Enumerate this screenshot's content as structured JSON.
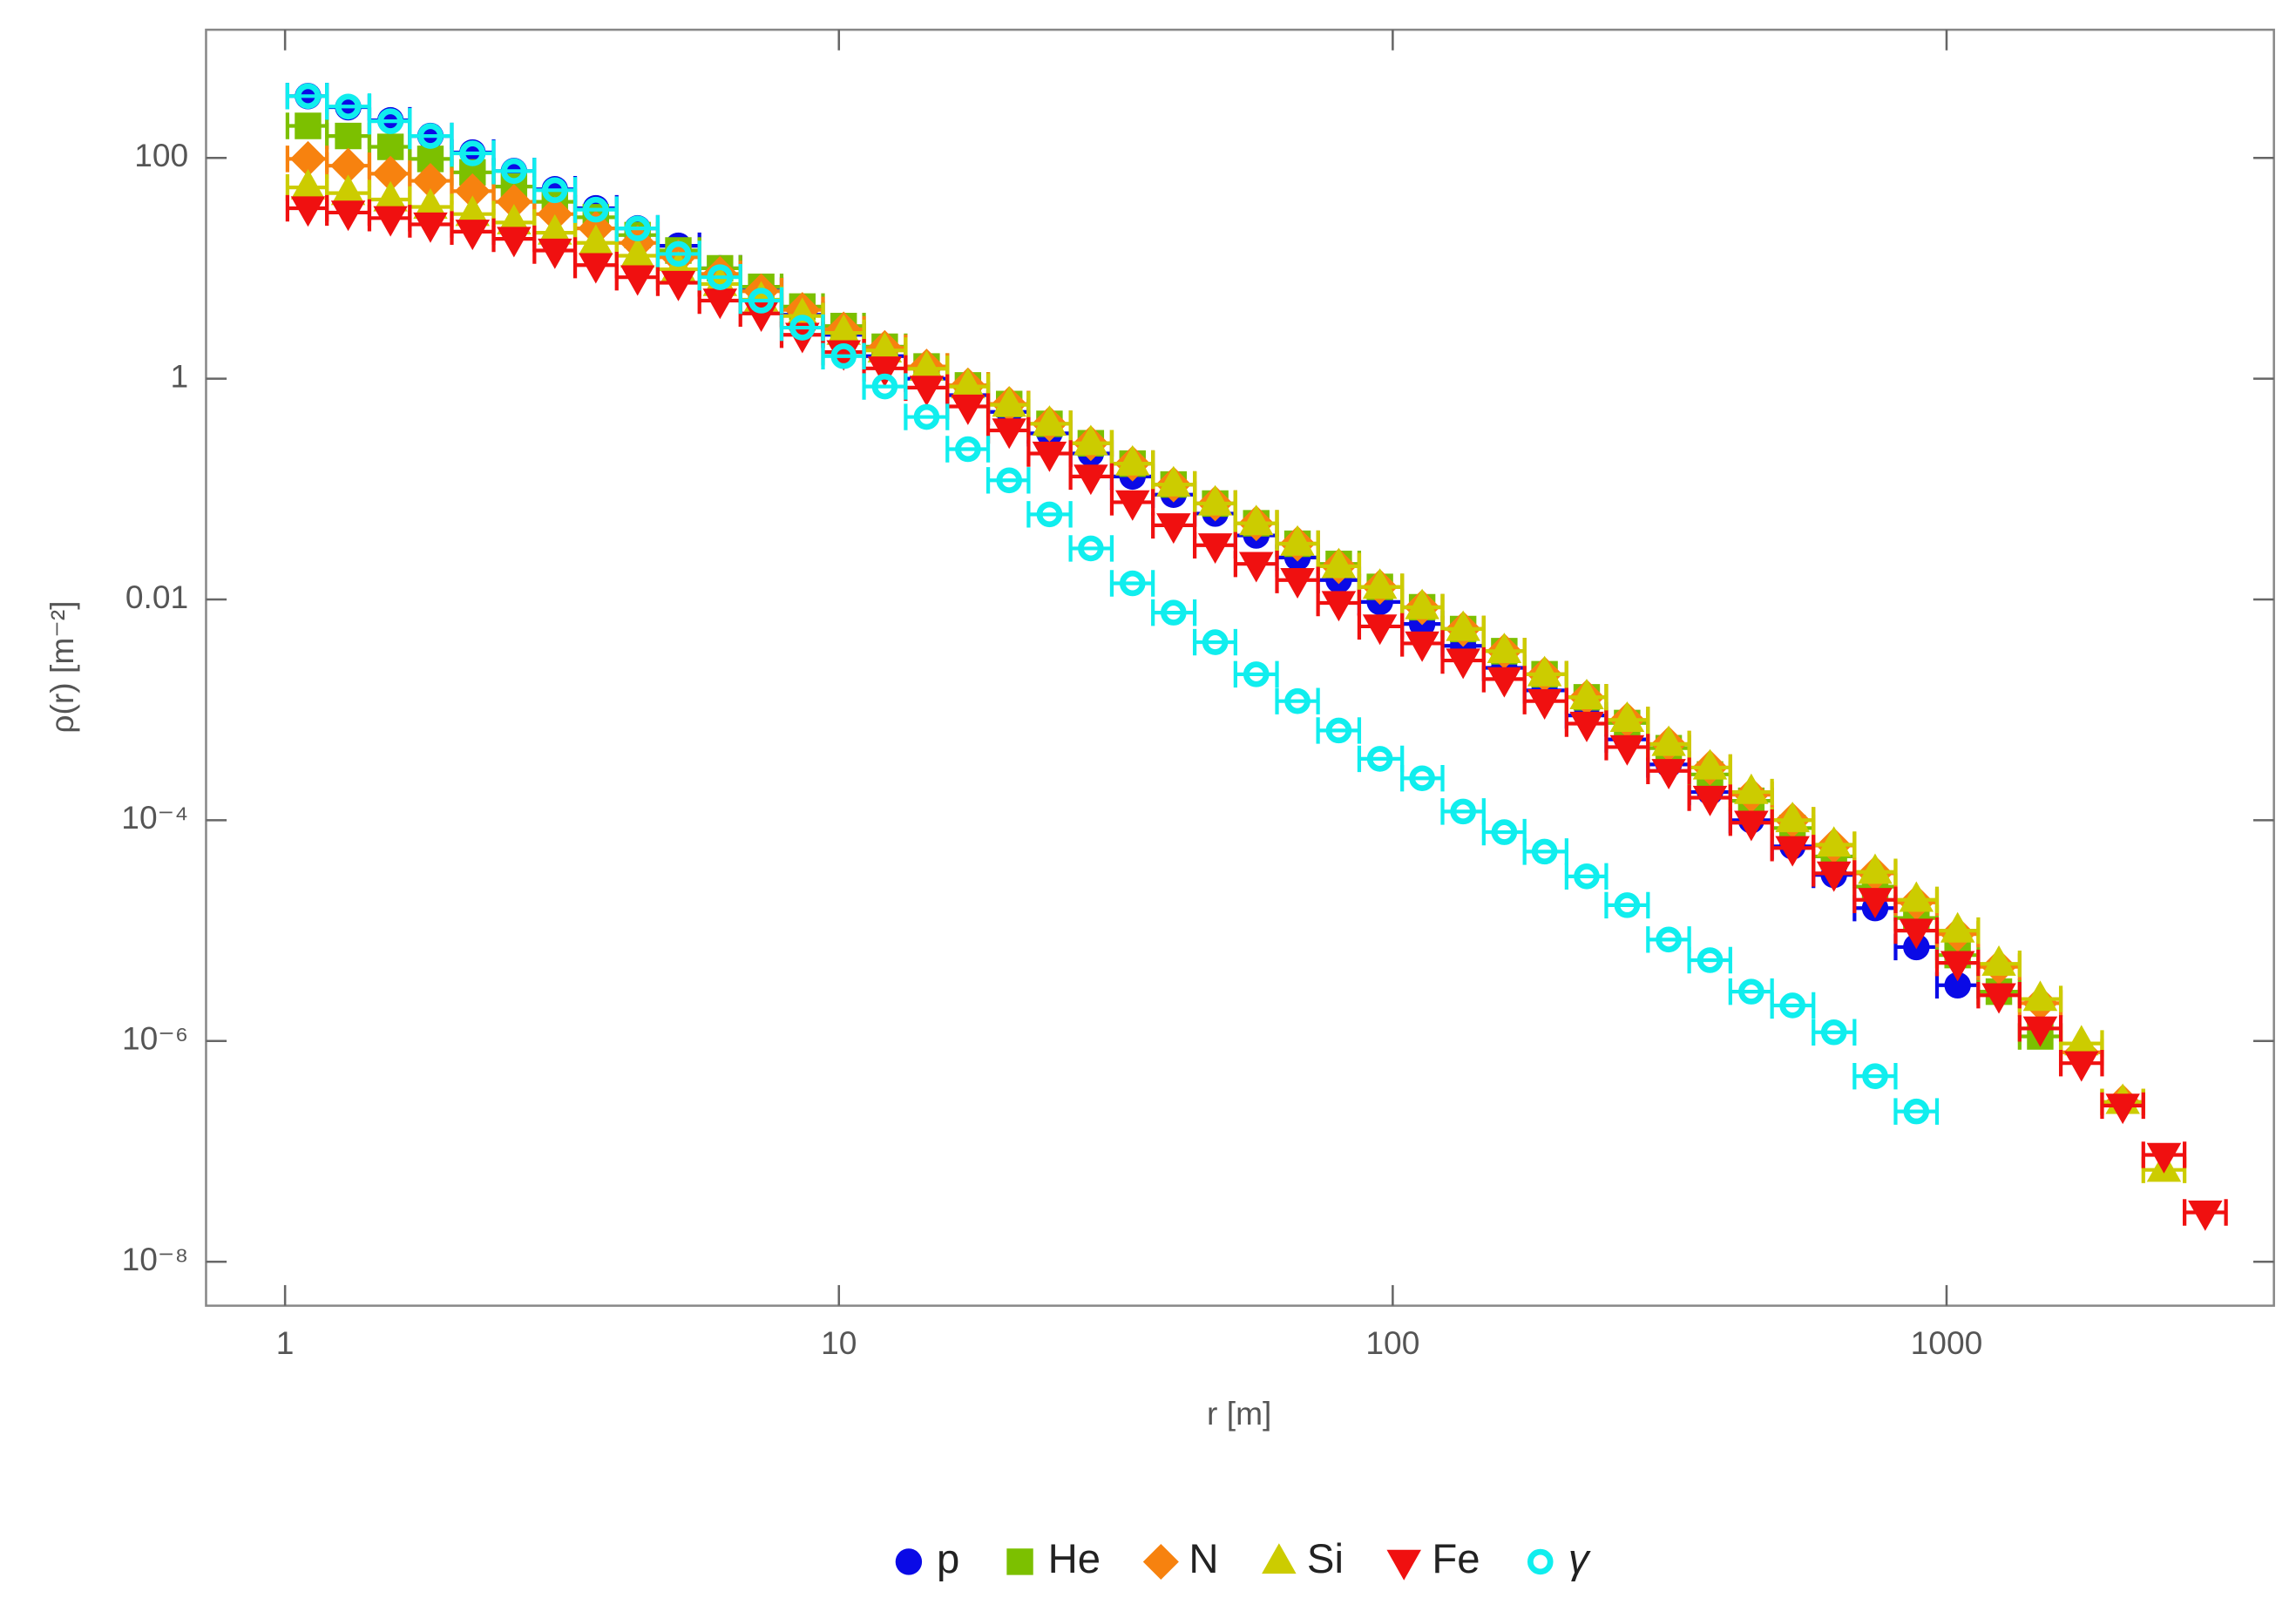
{
  "chart_data": {
    "type": "scatter",
    "xlabel": "r [m]",
    "ylabel": "ρ(r) [m⁻²]",
    "xscale": "log",
    "yscale": "log",
    "xlim": [
      0.72,
      3900
    ],
    "ylim": [
      4e-09,
      1450
    ],
    "xticks": [
      1,
      10,
      100,
      1000
    ],
    "yticks": [
      100,
      1,
      0.01,
      {
        "value": 0.0001,
        "label": "10⁻⁴"
      },
      {
        "value": 1e-06,
        "label": "10⁻⁶"
      },
      {
        "value": 1e-08,
        "label": "10⁻⁸"
      }
    ],
    "legend": "bottom",
    "x": [
      1.1,
      1.3,
      1.55,
      1.83,
      2.18,
      2.59,
      3.07,
      3.64,
      4.33,
      5.13,
      6.1,
      7.24,
      8.59,
      10.2,
      12.1,
      14.4,
      17.1,
      20.3,
      24.0,
      28.5,
      33.9,
      40.2,
      47.8,
      56.7,
      67.3,
      79.9,
      94.8,
      113,
      134,
      159,
      188,
      224,
      265,
      315,
      374,
      444,
      527,
      626,
      743,
      882,
      1047,
      1243,
      1476,
      1752,
      2080,
      2469,
      2931
    ],
    "bins": [
      1.01,
      1.19,
      1.42,
      1.68,
      2.0,
      2.38,
      2.82,
      3.34,
      3.97,
      4.71,
      5.6,
      6.64,
      7.88,
      9.36,
      11.1,
      13.2,
      15.7,
      18.6,
      22.0,
      26.2,
      31.1,
      36.9,
      43.9,
      52.0,
      61.8,
      73.3,
      87.0,
      104,
      123,
      146,
      173,
      206,
      243,
      289,
      343,
      407,
      484,
      575,
      682,
      809,
      961,
      1141,
      1355,
      1608,
      1909,
      2266,
      2690,
      3195
    ],
    "series": [
      {
        "name": "p",
        "color": "#0a0ae6",
        "marker": "circle",
        "values": [
          363,
          288,
          219,
          158,
          112,
          76,
          52,
          35,
          23,
          16,
          10,
          6.3,
          3.8,
          2.5,
          1.6,
          1.0,
          0.71,
          0.5,
          0.32,
          0.21,
          0.13,
          0.089,
          0.06,
          0.038,
          0.024,
          0.015,
          0.0095,
          0.006,
          0.0038,
          0.0024,
          0.0015,
          0.00089,
          0.00054,
          0.00032,
          0.00018,
          0.0001,
          5.8e-05,
          3.2e-05,
          1.6e-05,
          7.1e-06,
          3.2e-06,
          null,
          null,
          null,
          null,
          null,
          null
        ]
      },
      {
        "name": "He",
        "color": "#7cc000",
        "marker": "square",
        "values": [
          195,
          158,
          126,
          98,
          74,
          55,
          40,
          29,
          20,
          14.5,
          10,
          6.8,
          4.5,
          3.0,
          1.95,
          1.29,
          0.87,
          0.59,
          0.39,
          0.26,
          0.17,
          0.11,
          0.074,
          0.049,
          0.032,
          0.021,
          0.013,
          0.0085,
          0.0054,
          0.0034,
          0.0021,
          0.0013,
          0.00076,
          0.00045,
          0.00026,
          0.00015,
          8.5e-05,
          4.7e-05,
          2.5e-05,
          1.3e-05,
          6e-06,
          2.8e-06,
          1.1e-06,
          null,
          null,
          null,
          null
        ]
      },
      {
        "name": "N",
        "color": "#f7820f",
        "marker": "diamond",
        "values": [
          98,
          85,
          72,
          62,
          50,
          40,
          31,
          23,
          17,
          12.6,
          8.9,
          6.2,
          4.2,
          2.8,
          1.9,
          1.29,
          0.87,
          0.59,
          0.39,
          0.26,
          0.17,
          0.11,
          0.074,
          0.049,
          0.032,
          0.02,
          0.013,
          0.0085,
          0.0054,
          0.0034,
          0.0021,
          0.0013,
          0.00081,
          0.00049,
          0.0003,
          0.00017,
          0.0001,
          5.9e-05,
          3.3e-05,
          1.8e-05,
          9.3e-06,
          4.7e-06,
          2.2e-06,
          7.9e-07,
          2.8e-07,
          null,
          null
        ]
      },
      {
        "name": "Si",
        "color": "#cccc00",
        "marker": "triangle-up",
        "values": [
          54,
          48,
          42,
          36,
          31,
          26,
          21,
          17,
          13,
          9.8,
          7.2,
          5.2,
          3.7,
          2.6,
          1.8,
          1.23,
          0.85,
          0.58,
          0.39,
          0.26,
          0.17,
          0.11,
          0.074,
          0.049,
          0.032,
          0.02,
          0.013,
          0.0085,
          0.0054,
          0.0034,
          0.0021,
          0.0013,
          0.00081,
          0.00049,
          0.0003,
          0.00018,
          0.0001,
          6e-05,
          3.4e-05,
          1.9e-05,
          1e-05,
          5e-06,
          2.4e-06,
          9.5e-07,
          2.8e-07,
          6.8e-08,
          null
        ]
      },
      {
        "name": "Fe",
        "color": "#f01010",
        "marker": "triangle-down",
        "values": [
          35,
          32,
          28.5,
          25,
          21.5,
          18.5,
          14.5,
          10.7,
          8.3,
          7.4,
          5.1,
          3.9,
          2.5,
          1.74,
          1.24,
          0.83,
          0.56,
          0.34,
          0.21,
          0.13,
          0.076,
          0.047,
          0.031,
          0.021,
          0.015,
          0.0093,
          0.0057,
          0.004,
          0.0028,
          0.0019,
          0.0012,
          0.00075,
          0.00046,
          0.00028,
          0.00016,
          9.5e-05,
          5.6e-05,
          3.3e-05,
          1.9e-05,
          1e-05,
          5.1e-06,
          2.6e-06,
          1.3e-06,
          6.3e-07,
          2.6e-07,
          9.3e-08,
          2.8e-08
        ]
      },
      {
        "name": "γ",
        "color": "#10eeee",
        "marker": "circle-open",
        "values": [
          363,
          292,
          215,
          158,
          110,
          76,
          51,
          34,
          23,
          13.5,
          8.3,
          5.1,
          2.9,
          1.6,
          0.85,
          0.45,
          0.23,
          0.12,
          0.059,
          0.029,
          0.014,
          0.0076,
          0.0041,
          0.0021,
          0.0012,
          0.00065,
          0.00036,
          0.00024,
          0.00012,
          7.8e-05,
          5.2e-05,
          3.1e-05,
          1.7e-05,
          8.3e-06,
          5.4e-06,
          2.8e-06,
          2.1e-06,
          1.2e-06,
          4.8e-07,
          2.3e-07,
          null,
          null,
          null,
          null,
          null,
          null,
          null
        ]
      }
    ]
  }
}
